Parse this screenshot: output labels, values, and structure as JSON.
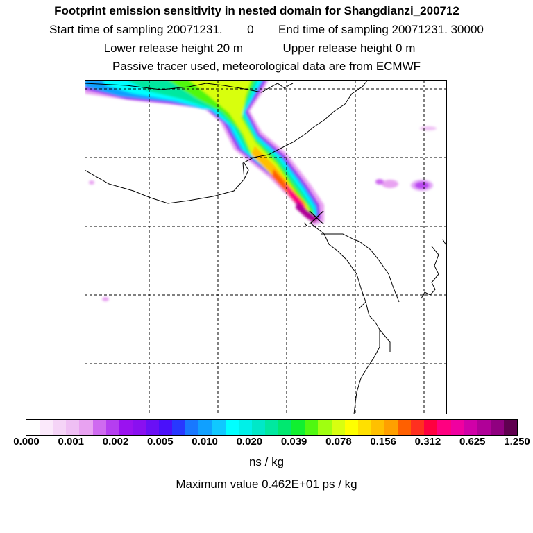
{
  "header": {
    "title": "Footprint emission sensitivity in nested domain for Shangdianzi_200712",
    "start_label": "Start time of sampling",
    "start_value": "20071231.",
    "start_time": "0",
    "end_label": "End time of sampling",
    "end_value": "20071231. 30000",
    "lower_label": "Lower release height",
    "lower_value": "20 m",
    "upper_label": "Upper release height",
    "upper_value": "0 m",
    "note": "Passive tracer used, meteorological data are from ECMWF"
  },
  "colorbar": {
    "colors": [
      "#ffffff",
      "#fbe9fb",
      "#f5d4f7",
      "#efbff4",
      "#e8a2f1",
      "#cf6af0",
      "#b53ef0",
      "#9a12f0",
      "#8a10f0",
      "#6a10f5",
      "#4a10fa",
      "#2838ff",
      "#1878ff",
      "#10a0ff",
      "#10c8ff",
      "#00ffff",
      "#00f0e8",
      "#00e8c8",
      "#00e8a0",
      "#00e870",
      "#10f030",
      "#50f810",
      "#a0ff10",
      "#d8ff10",
      "#ffff00",
      "#ffe000",
      "#ffc000",
      "#ffa000",
      "#ff6000",
      "#ff3020",
      "#ff0040",
      "#ff0080",
      "#f000a0",
      "#d000a8",
      "#b00098",
      "#900080",
      "#600050"
    ],
    "ticks": [
      "0.000",
      "0.001",
      "0.002",
      "0.005",
      "0.010",
      "0.020",
      "0.039",
      "0.078",
      "0.156",
      "0.312",
      "0.625",
      "1.250"
    ],
    "unit": "ns / kg"
  },
  "max_value_text": "Maximum value  0.462E+01 ps / kg",
  "receptor": {
    "name": "Shangdianzi",
    "symbol": "x-icon"
  }
}
